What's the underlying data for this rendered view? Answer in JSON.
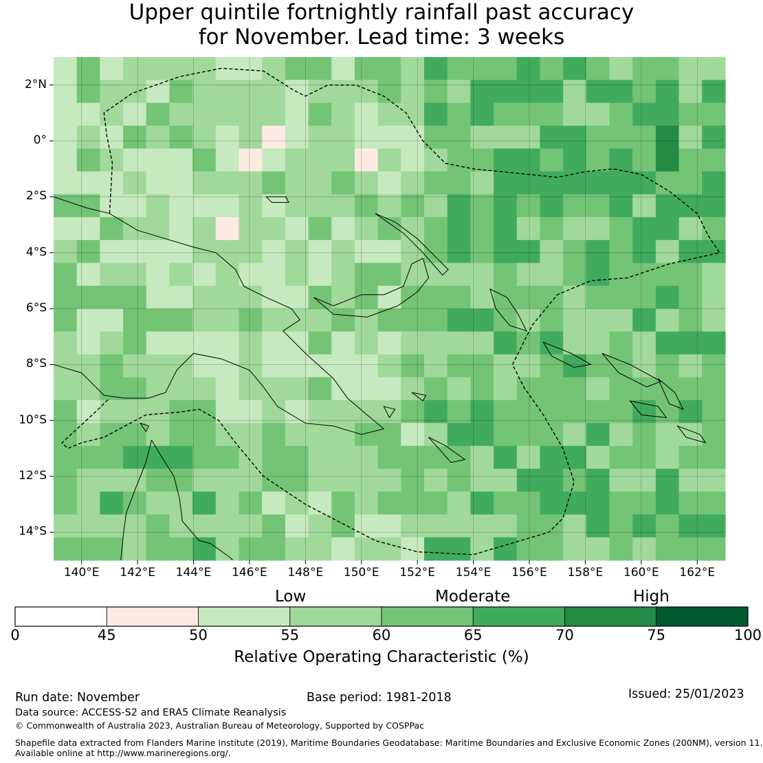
{
  "title": {
    "line1": "Upper quintile fortnightly rainfall past accuracy",
    "line2": "for November. Lead time: 3 weeks"
  },
  "map": {
    "lon_range": [
      139,
      163
    ],
    "lat_range": [
      -15,
      3
    ],
    "lon_ticks": [
      "140°E",
      "142°E",
      "144°E",
      "146°E",
      "148°E",
      "150°E",
      "152°E",
      "154°E",
      "156°E",
      "158°E",
      "160°E",
      "162°E"
    ],
    "lat_ticks": [
      "2°N",
      "0°",
      "2°S",
      "4°S",
      "6°S",
      "8°S",
      "10°S",
      "12°S",
      "14°S"
    ],
    "coastline_color": "#000000",
    "boundary_style": "dashed"
  },
  "colorbar": {
    "categories": [
      "Low",
      "Moderate",
      "High"
    ],
    "tick_labels": [
      "0",
      "45",
      "50",
      "55",
      "60",
      "65",
      "70",
      "75",
      "100"
    ],
    "colors": [
      "#ffffff",
      "#fdebe3",
      "#c7e9c0",
      "#a1d99b",
      "#74c476",
      "#41ab5d",
      "#238b45",
      "#005a32"
    ],
    "title": "Relative Operating Characteristic (%)"
  },
  "footer": {
    "run_date": "Run date: November",
    "base_period": "Base period: 1981-2018",
    "issued": "Issued: 25/01/2023",
    "data_source": "Data source: ACCESS-S2 and ERA5 Climate Reanalysis",
    "copyright": "© Commonwealth of Australia 2023, Australian Bureau of Meteorology, Supported by COSPPac",
    "shapefile_line1": "Shapefile data extracted from Flanders Marine Institute (2019), Maritime Boundaries Geodatabase: Maritime Boundaries and Exclusive Economic Zones (200NM), version 11.",
    "shapefile_line2": "Available online at http://www.marineregions.org/."
  }
}
